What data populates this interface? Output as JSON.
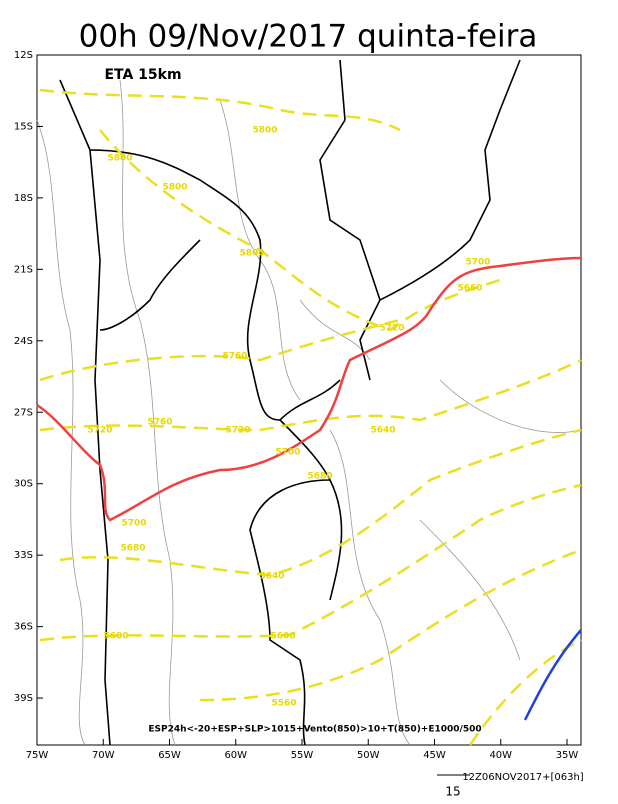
{
  "title": "00h 09/Nov/2017 quinta-feira",
  "model_label": "ETA 15km",
  "lat_labels": [
    "12S",
    "15S",
    "18S",
    "21S",
    "24S",
    "27S",
    "30S",
    "33S",
    "36S",
    "39S"
  ],
  "lon_labels": [
    "75W",
    "70W",
    "65W",
    "60W",
    "55W",
    "50W",
    "45W",
    "40W",
    "35W"
  ],
  "contour_labels": [
    "5800",
    "5800",
    "5800",
    "5800",
    "5700",
    "5660",
    "5720",
    "5760",
    "5720",
    "5760",
    "5720",
    "5700",
    "5640",
    "5680",
    "5700",
    "5680",
    "5640",
    "5600",
    "5600",
    "5560"
  ],
  "caption": "ESP24h<-20+ESP+SLP>1015+Vento(850)>10+T(850)+E1000/500",
  "footer": {
    "run": "12Z06NOV2017+[063h]",
    "vector_scale": "15"
  }
}
